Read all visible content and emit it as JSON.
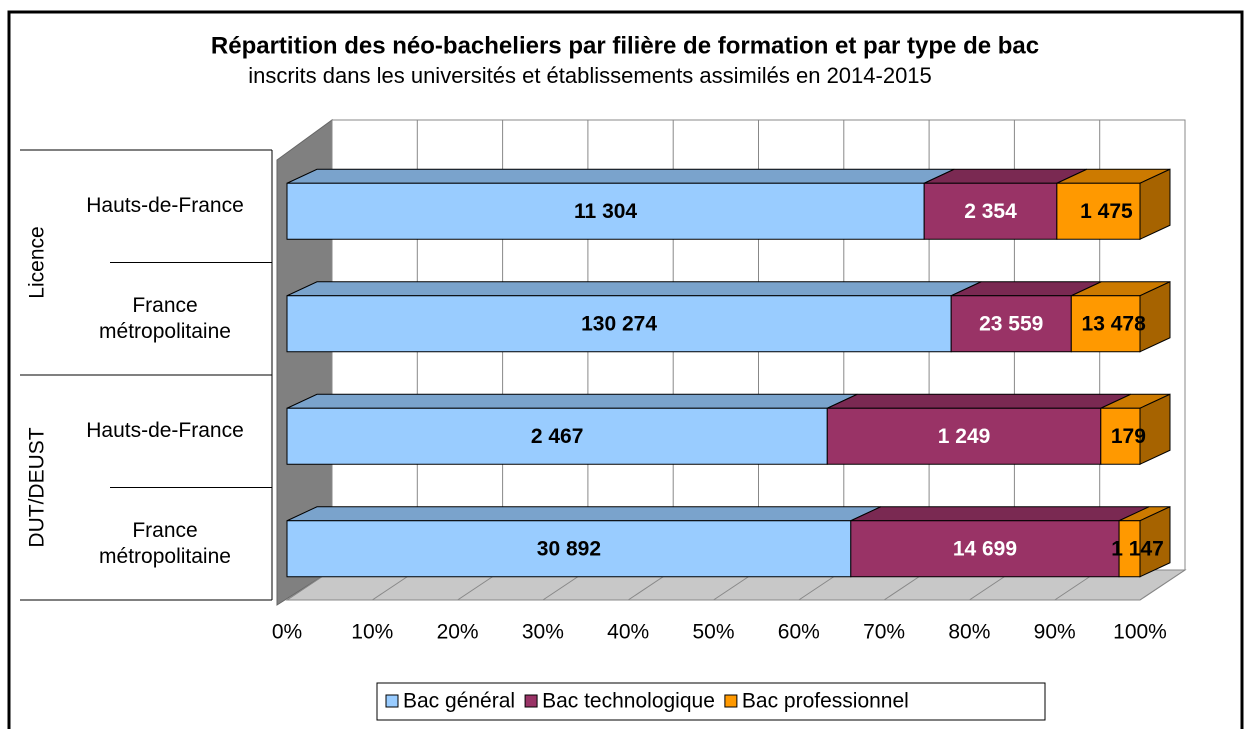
{
  "chart_data": {
    "type": "bar",
    "orientation": "horizontal",
    "stacked": "percent",
    "title": "Répartition des néo-bacheliers par filière de formation et par type de bac",
    "subtitle": "inscrits dans les universités et établissements assimilés en 2014-2015",
    "groups": [
      "Licence",
      "DUT/DEUST"
    ],
    "categories": [
      "Hauts-de-France",
      "France métropolitaine",
      "Hauts-de-France",
      "France métropolitaine"
    ],
    "series": [
      {
        "name": "Bac général",
        "color": "#99ccff",
        "values": [
          11304,
          130274,
          2467,
          30892
        ],
        "value_labels": [
          "11 304",
          "130 274",
          "2 467",
          "30 892"
        ]
      },
      {
        "name": "Bac technologique",
        "color": "#993366",
        "values": [
          2354,
          23559,
          1249,
          14699
        ],
        "value_labels": [
          "2 354",
          "23 559",
          "1 249",
          "14 699"
        ]
      },
      {
        "name": "Bac professionnel",
        "color": "#ff9900",
        "values": [
          1475,
          13478,
          179,
          1147
        ],
        "value_labels": [
          "1 475",
          "13 478",
          "179",
          "1 147"
        ]
      }
    ],
    "xlim": [
      0,
      100
    ],
    "xticks": [
      {
        "value": 0,
        "label": "0%"
      },
      {
        "value": 10,
        "label": "10%"
      },
      {
        "value": 20,
        "label": "20%"
      },
      {
        "value": 30,
        "label": "30%"
      },
      {
        "value": 40,
        "label": "40%"
      },
      {
        "value": 50,
        "label": "50%"
      },
      {
        "value": 60,
        "label": "60%"
      },
      {
        "value": 70,
        "label": "70%"
      },
      {
        "value": 80,
        "label": "80%"
      },
      {
        "value": 90,
        "label": "90%"
      },
      {
        "value": 100,
        "label": "100%"
      }
    ],
    "grid": true,
    "legend": "bottom"
  }
}
